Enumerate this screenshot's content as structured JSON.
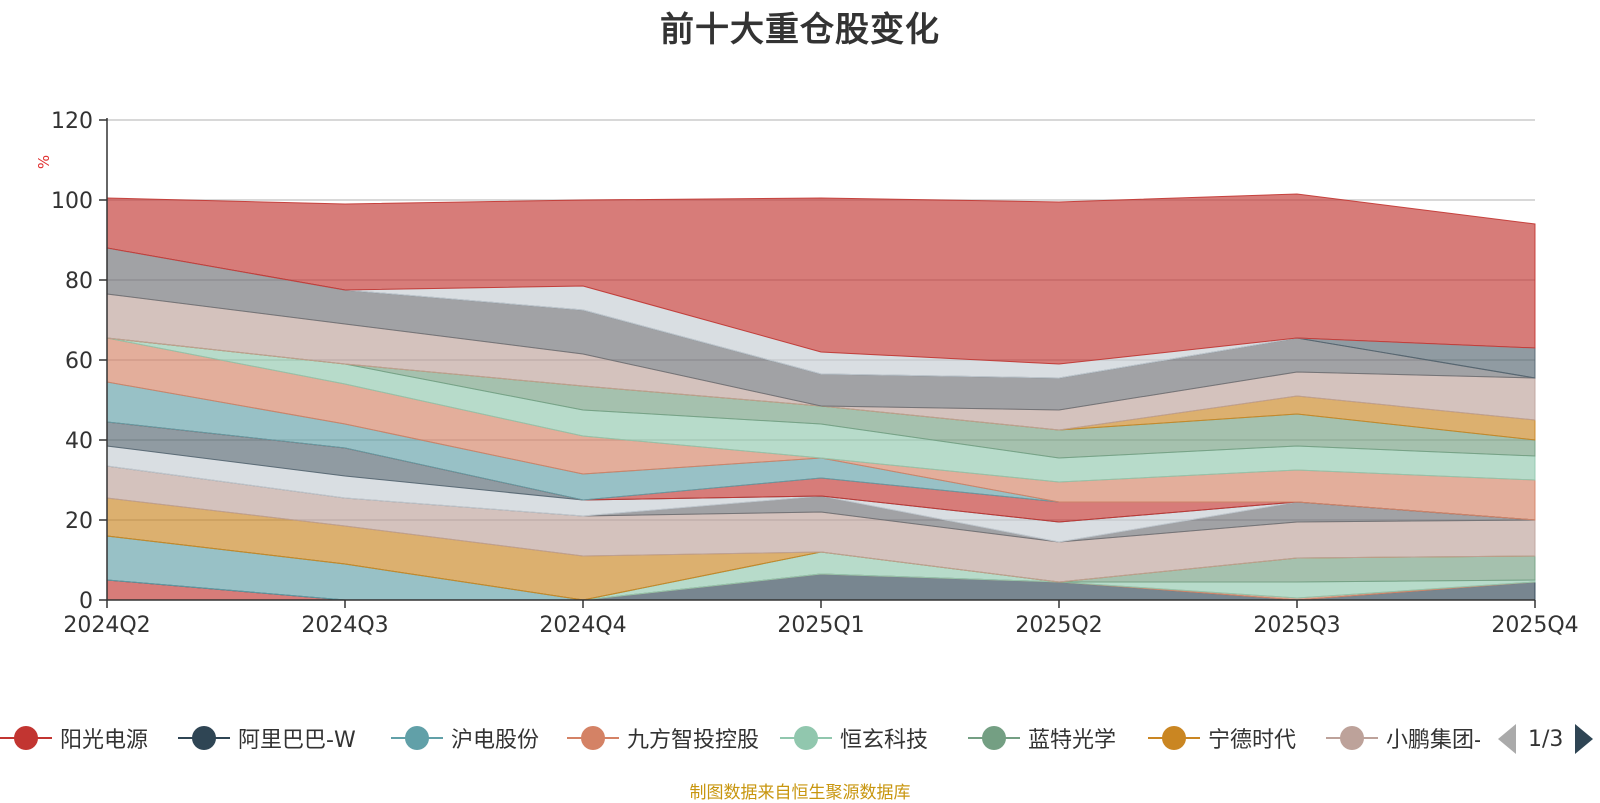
{
  "colors": {
    "阳光电源": "#c23531",
    "阿里巴巴-W": "#2f4554",
    "沪电股份": "#61a0a8",
    "九方智投控股": "#d48265",
    "恒玄科技": "#91c7ae",
    "蓝特光学": "#749f83",
    "宁德时代": "#ca8622",
    "小鹏集团-W": "#bda29a",
    "X": "#c4ccd3",
    "Y": "#6e7074",
    "Z": "#546570"
  },
  "pager": {
    "text": "1/3",
    "prev_icon": "triangle-left-icon",
    "next_icon": "triangle-right-icon"
  },
  "source": "制图数据来自恒生聚源数据库",
  "chart_data": {
    "type": "area",
    "stacked": true,
    "title": "前十大重仓股变化",
    "ylabel": "%",
    "xlabel": "",
    "ylim": [
      0,
      120
    ],
    "yticks": [
      0,
      20,
      40,
      60,
      80,
      100,
      120
    ],
    "grid": true,
    "legend_position": "bottom",
    "categories": [
      "2024Q2",
      "2024Q3",
      "2024Q4",
      "2025Q1",
      "2025Q2",
      "2025Q3",
      "2025Q4"
    ],
    "legend_items": [
      "阳光电源",
      "阿里巴巴-W",
      "沪电股份",
      "九方智投控股",
      "恒玄科技",
      "蓝特光学",
      "宁德时代",
      "小鹏集团-W"
    ],
    "series": [
      {
        "colorKey": "阳光电源",
        "values": [
          5,
          0,
          0,
          0,
          0,
          0,
          0
        ]
      },
      {
        "colorKey": "阿里巴巴-W",
        "values": [
          0,
          0,
          0,
          6.5,
          4.5,
          0,
          4.5
        ]
      },
      {
        "colorKey": "沪电股份",
        "values": [
          11,
          9,
          0,
          0,
          0,
          0,
          0
        ]
      },
      {
        "colorKey": "九方智投控股",
        "values": [
          0,
          0,
          0,
          0,
          0,
          0.5,
          0
        ]
      },
      {
        "colorKey": "恒玄科技",
        "values": [
          0,
          0,
          0,
          5.5,
          0,
          4,
          0.5
        ]
      },
      {
        "colorKey": "蓝特光学",
        "values": [
          0,
          0,
          0,
          0,
          0,
          6,
          6
        ]
      },
      {
        "colorKey": "宁德时代",
        "values": [
          9.5,
          9.5,
          11,
          0,
          0,
          0,
          0
        ]
      },
      {
        "colorKey": "小鹏集团-W",
        "values": [
          8,
          7,
          10,
          10,
          10,
          9,
          9
        ]
      },
      {
        "colorKey": "Y",
        "values": [
          0,
          0,
          0,
          4,
          0,
          5,
          0
        ]
      },
      {
        "colorKey": "X",
        "values": [
          5,
          5.5,
          4,
          0,
          5,
          0,
          0
        ]
      },
      {
        "colorKey": "Z",
        "values": [
          6,
          7,
          0,
          0,
          0,
          0,
          0
        ]
      },
      {
        "colorKey": "阳光电源",
        "values": [
          0,
          0,
          0,
          4.5,
          5,
          0,
          0
        ]
      },
      {
        "colorKey": "沪电股份",
        "values": [
          10,
          6,
          6.5,
          5,
          0,
          0,
          0
        ]
      },
      {
        "colorKey": "九方智投控股",
        "values": [
          11,
          10,
          9.5,
          0,
          5,
          8,
          10
        ]
      },
      {
        "colorKey": "恒玄科技",
        "values": [
          0,
          5,
          6.5,
          8.5,
          6,
          6,
          6
        ]
      },
      {
        "colorKey": "蓝特光学",
        "values": [
          0,
          0,
          6,
          4.5,
          7,
          8,
          4
        ]
      },
      {
        "colorKey": "宁德时代",
        "values": [
          0,
          0,
          0,
          0,
          0,
          4.5,
          5
        ]
      },
      {
        "colorKey": "小鹏集团-W",
        "values": [
          11,
          10,
          8,
          0,
          5,
          6,
          10.5
        ]
      },
      {
        "colorKey": "Y",
        "values": [
          11.5,
          8.5,
          11,
          8,
          8,
          8.5,
          0
        ]
      },
      {
        "colorKey": "Z",
        "values": [
          0,
          0,
          0,
          0,
          0,
          0,
          7.5
        ]
      },
      {
        "colorKey": "X",
        "values": [
          0,
          0,
          6,
          5.5,
          3.5,
          0,
          0
        ]
      },
      {
        "colorKey": "阳光电源",
        "values": [
          12.5,
          21.5,
          21.5,
          38.5,
          40.5,
          36,
          31
        ]
      }
    ]
  }
}
